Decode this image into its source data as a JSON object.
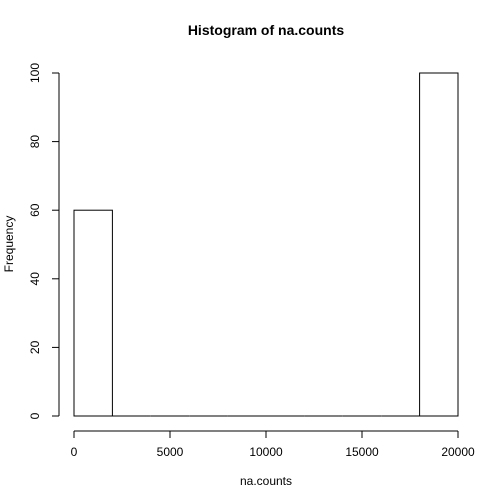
{
  "chart_data": {
    "type": "bar",
    "title": "Histogram of na.counts",
    "xlabel": "na.counts",
    "ylabel": "Frequency",
    "bins": [
      {
        "x0": 0,
        "x1": 2000,
        "count": 60
      },
      {
        "x0": 2000,
        "x1": 4000,
        "count": 0
      },
      {
        "x0": 4000,
        "x1": 6000,
        "count": 0
      },
      {
        "x0": 6000,
        "x1": 8000,
        "count": 0
      },
      {
        "x0": 8000,
        "x1": 10000,
        "count": 0
      },
      {
        "x0": 10000,
        "x1": 12000,
        "count": 0
      },
      {
        "x0": 12000,
        "x1": 14000,
        "count": 0
      },
      {
        "x0": 14000,
        "x1": 16000,
        "count": 0
      },
      {
        "x0": 16000,
        "x1": 18000,
        "count": 0
      },
      {
        "x0": 18000,
        "x1": 20000,
        "count": 100
      }
    ],
    "xlim": [
      0,
      20000
    ],
    "ylim": [
      0,
      100
    ],
    "x_ticks": [
      0,
      5000,
      10000,
      15000,
      20000
    ],
    "y_ticks": [
      0,
      20,
      40,
      60,
      80,
      100
    ],
    "grid": false,
    "colors": {
      "bar_fill": "#ffffff",
      "bar_stroke": "#000000"
    }
  }
}
